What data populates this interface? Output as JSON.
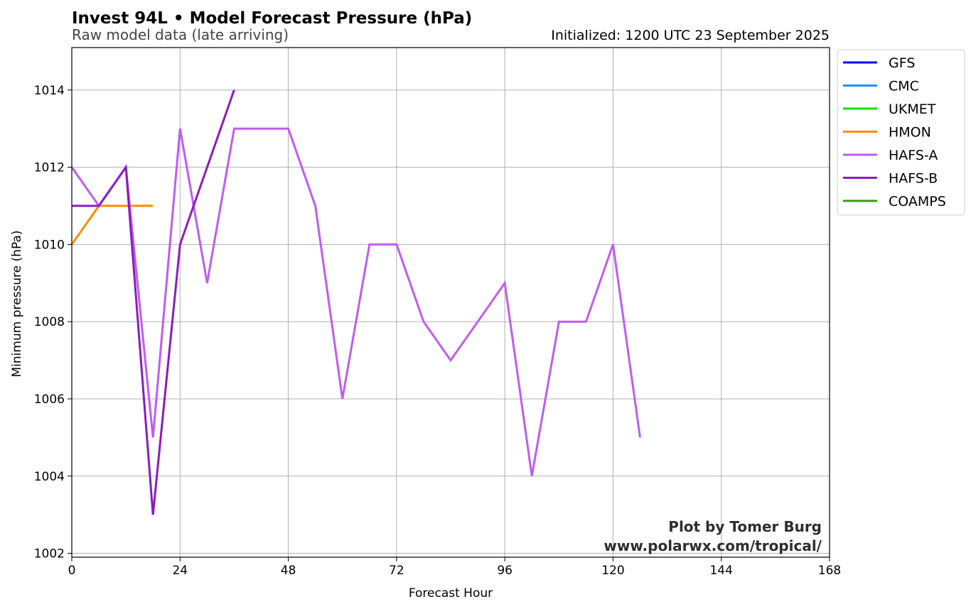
{
  "chart_data": {
    "type": "line",
    "title": "Invest 94L • Model Forecast Pressure (hPa)",
    "subtitle": "Raw model data (late arriving)",
    "init_text": "Initialized: 1200 UTC 23 September 2025",
    "xlabel": "Forecast Hour",
    "ylabel": "Minimum pressure (hPa)",
    "xlim": [
      0,
      168
    ],
    "ylim": [
      1001.9,
      1015.1
    ],
    "xticks": [
      0,
      24,
      48,
      72,
      96,
      120,
      144,
      168
    ],
    "yticks": [
      1002,
      1004,
      1006,
      1008,
      1010,
      1012,
      1014
    ],
    "grid": true,
    "legend_position": "outside-top-right",
    "credit_line1": "Plot by Tomer Burg",
    "credit_line2": "www.polarwx.com/tropical/",
    "series": [
      {
        "name": "GFS",
        "color": "#0000e8",
        "x": [],
        "y": []
      },
      {
        "name": "CMC",
        "color": "#1e90ff",
        "x": [],
        "y": []
      },
      {
        "name": "UKMET",
        "color": "#00e600",
        "x": [],
        "y": []
      },
      {
        "name": "HMON",
        "color": "#ff8c00",
        "x": [
          0,
          6,
          12,
          18
        ],
        "y": [
          1010,
          1011,
          1011,
          1011
        ]
      },
      {
        "name": "HAFS-A",
        "color": "#c05cf0",
        "x": [
          0,
          6,
          12,
          18,
          24,
          30,
          36,
          42,
          48,
          54,
          60,
          66,
          72,
          78,
          84,
          90,
          96,
          102,
          108,
          114,
          120,
          126
        ],
        "y": [
          1012,
          1011,
          1012,
          1005,
          1013,
          1009,
          1013,
          1013,
          1013,
          1011,
          1006,
          1010,
          1010,
          1008,
          1007,
          1008,
          1009,
          1004,
          1008,
          1008,
          1010,
          1005
        ]
      },
      {
        "name": "HAFS-B",
        "color": "#8a1cc0",
        "x": [
          0,
          6,
          12,
          18,
          24,
          30,
          36
        ],
        "y": [
          1011,
          1011,
          1012,
          1003,
          1010,
          1012,
          1014
        ]
      },
      {
        "name": "COAMPS",
        "color": "#3a9a1a",
        "x": [],
        "y": []
      }
    ]
  }
}
